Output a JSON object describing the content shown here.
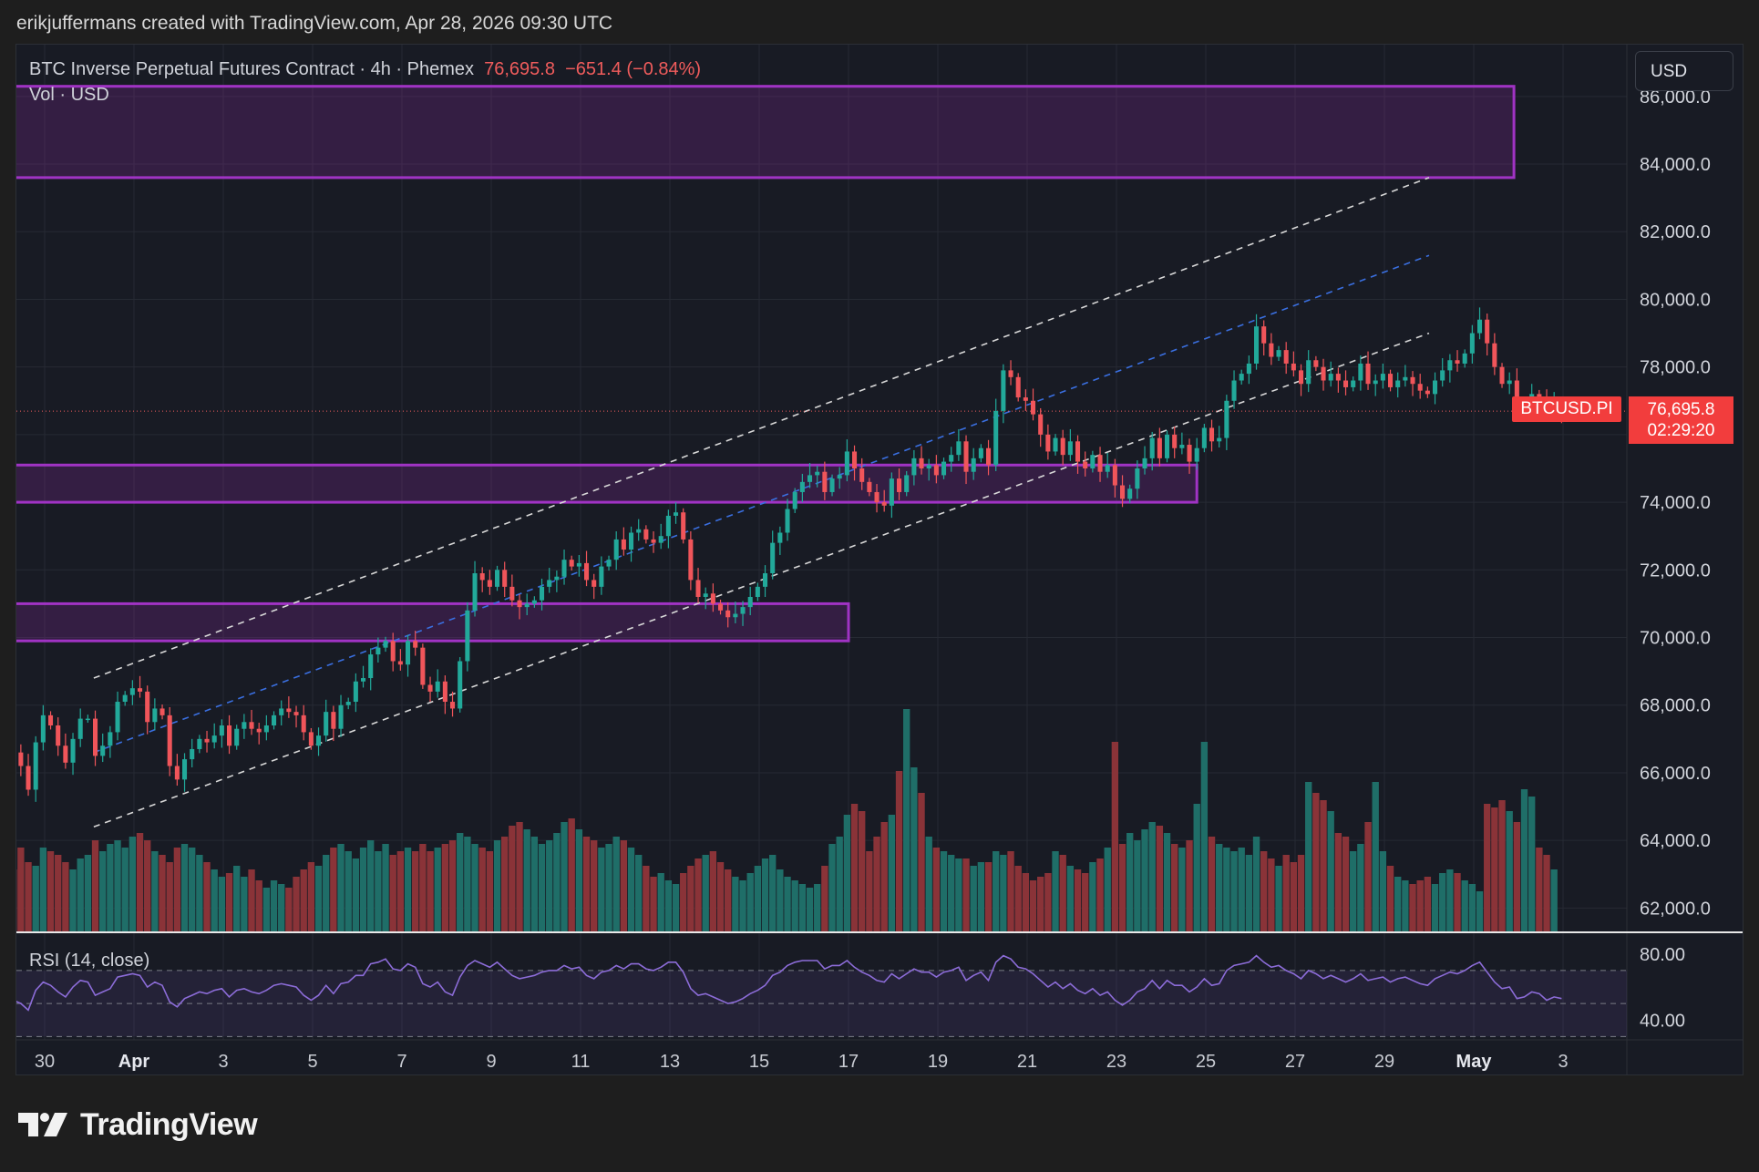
{
  "attribution": "erikjuffermans created with TradingView.com, Apr 28, 2026 09:30 UTC",
  "legend": {
    "symbol_desc": "BTC Inverse Perpetual Futures Contract · 4h · Phemex",
    "last": "76,695.8",
    "change": "−651.4 (−0.84%)"
  },
  "volume_legend": "Vol · USD",
  "rsi_legend": "RSI (14, close)",
  "currency_button": "USD",
  "price_badge": {
    "symbol": "BTCUSD.PI",
    "price": "76,695.8",
    "countdown": "02:29:20"
  },
  "brand": "TradingView",
  "colors": {
    "up": "#22a99a",
    "down": "#f0555a",
    "zone": "#9c27b0",
    "channel_mid": "#3a6fe0",
    "rsi_line": "#8c6cd8",
    "background": "#181b24"
  },
  "chart_data": {
    "type": "candlestick",
    "timeframe": "4h",
    "y_ticks": [
      "86,000.0",
      "84,000.0",
      "82,000.0",
      "80,000.0",
      "78,000.0",
      "76,000.0",
      "74,000.0",
      "72,000.0",
      "70,000.0",
      "68,000.0",
      "66,000.0",
      "64,000.0",
      "62,000.0"
    ],
    "ylim": [
      60900,
      87200
    ],
    "x_ticks": [
      {
        "label": "30",
        "day": -1,
        "bold": false
      },
      {
        "label": "Apr",
        "day": 1,
        "bold": true
      },
      {
        "label": "3",
        "day": 3,
        "bold": false
      },
      {
        "label": "5",
        "day": 5,
        "bold": false
      },
      {
        "label": "7",
        "day": 7,
        "bold": false
      },
      {
        "label": "9",
        "day": 9,
        "bold": false
      },
      {
        "label": "11",
        "day": 11,
        "bold": false
      },
      {
        "label": "13",
        "day": 13,
        "bold": false
      },
      {
        "label": "15",
        "day": 15,
        "bold": false
      },
      {
        "label": "17",
        "day": 17,
        "bold": false
      },
      {
        "label": "19",
        "day": 19,
        "bold": false
      },
      {
        "label": "21",
        "day": 21,
        "bold": false
      },
      {
        "label": "23",
        "day": 23,
        "bold": false
      },
      {
        "label": "25",
        "day": 25,
        "bold": false
      },
      {
        "label": "27",
        "day": 27,
        "bold": false
      },
      {
        "label": "29",
        "day": 29,
        "bold": false
      },
      {
        "label": "May",
        "day": 31,
        "bold": true
      },
      {
        "label": "3",
        "day": 33,
        "bold": false
      }
    ],
    "candles_start_day": -1.7,
    "candles_per_day": 6,
    "closes": [
      66600,
      66200,
      65500,
      66900,
      67700,
      67400,
      66800,
      66300,
      67000,
      67600,
      67600,
      66500,
      66800,
      67200,
      68100,
      68300,
      68500,
      68400,
      67500,
      67900,
      67700,
      66200,
      65800,
      66400,
      66700,
      67000,
      66900,
      67100,
      67400,
      66800,
      67300,
      67500,
      67300,
      67200,
      67400,
      67700,
      67900,
      67800,
      67700,
      67200,
      66800,
      67100,
      67800,
      67300,
      68000,
      68100,
      68700,
      68800,
      69500,
      69700,
      69900,
      69300,
      69200,
      69900,
      69700,
      68600,
      68400,
      68700,
      68100,
      67900,
      69300,
      70800,
      71900,
      71700,
      71500,
      72000,
      71500,
      71100,
      70900,
      71000,
      71100,
      71500,
      71700,
      71800,
      72300,
      72100,
      72200,
      71700,
      71500,
      72100,
      72300,
      72900,
      72600,
      73100,
      73200,
      72900,
      72800,
      73000,
      73600,
      73700,
      72900,
      71700,
      71200,
      71300,
      71000,
      70800,
      70600,
      70700,
      70900,
      71200,
      71500,
      71900,
      72800,
      73100,
      73800,
      74300,
      74600,
      74800,
      74900,
      74300,
      74700,
      74800,
      75500,
      75000,
      74600,
      74300,
      74000,
      73900,
      74700,
      74300,
      74800,
      75300,
      75000,
      75100,
      74800,
      75200,
      75400,
      75800,
      74900,
      75300,
      75600,
      75100,
      76700,
      77900,
      77700,
      77100,
      77000,
      76600,
      76000,
      75500,
      75900,
      75400,
      75800,
      75200,
      75000,
      75400,
      74900,
      75100,
      74500,
      74100,
      74400,
      75000,
      75300,
      75900,
      75300,
      76000,
      75600,
      75700,
      75200,
      75600,
      76200,
      75800,
      75900,
      77000,
      77600,
      77800,
      78100,
      79200,
      78700,
      78300,
      78500,
      78100,
      77900,
      77500,
      78200,
      78000,
      77600,
      77800,
      77600,
      77400,
      77600,
      78100,
      77500,
      77600,
      77800,
      77400,
      77600,
      77700,
      77500,
      77300,
      77200,
      77600,
      77900,
      78200,
      78100,
      78400,
      79000,
      79400,
      78700,
      78000,
      77500,
      77600,
      76800,
      76900,
      77200,
      77100,
      76700,
      76900,
      76700
    ],
    "volume": {
      "ylim": [
        0,
        6500
      ],
      "values": [
        1700,
        2300,
        1900,
        1800,
        2300,
        2200,
        2100,
        1900,
        1700,
        2000,
        2100,
        2500,
        2200,
        2400,
        2500,
        2300,
        2600,
        2700,
        2500,
        2200,
        2100,
        1900,
        2300,
        2400,
        2300,
        2100,
        1900,
        1700,
        1500,
        1600,
        1800,
        1500,
        1700,
        1400,
        1200,
        1400,
        1300,
        1200,
        1500,
        1700,
        1900,
        1800,
        2100,
        2300,
        2400,
        2200,
        2000,
        2300,
        2500,
        2200,
        2400,
        2100,
        2200,
        2300,
        2200,
        2400,
        2200,
        2300,
        2400,
        2500,
        2700,
        2600,
        2400,
        2300,
        2200,
        2500,
        2600,
        2900,
        3000,
        2800,
        2600,
        2400,
        2500,
        2700,
        3000,
        3100,
        2800,
        2600,
        2500,
        2300,
        2400,
        2600,
        2500,
        2300,
        2100,
        1800,
        1500,
        1600,
        1400,
        1300,
        1600,
        1800,
        2000,
        2100,
        2200,
        1900,
        1700,
        1500,
        1400,
        1600,
        1800,
        2000,
        2100,
        1700,
        1500,
        1400,
        1300,
        1200,
        1300,
        1800,
        2400,
        2600,
        3200,
        3500,
        3300,
        2200,
        2600,
        3000,
        3200,
        4400,
        6100,
        4500,
        3800,
        2600,
        2300,
        2200,
        2100,
        2000,
        2000,
        1800,
        1900,
        1900,
        2200,
        2100,
        2200,
        1800,
        1600,
        1400,
        1500,
        1600,
        2200,
        2100,
        1800,
        1700,
        1600,
        1900,
        2000,
        2300,
        5200,
        2400,
        2700,
        2500,
        2800,
        3000,
        2900,
        2700,
        2400,
        2300,
        2500,
        3500,
        5200,
        2600,
        2400,
        2300,
        2200,
        2300,
        2100,
        2600,
        2200,
        2000,
        1800,
        2100,
        1900,
        2100,
        4100,
        3800,
        3600,
        3300,
        2700,
        2600,
        2200,
        2400,
        3000,
        4100,
        2200,
        1800,
        1500,
        1400,
        1300,
        1400,
        1500,
        1300,
        1600,
        1700,
        1600,
        1400,
        1300,
        1100,
        3500,
        3400,
        3600,
        3300,
        3000,
        3900,
        3700,
        2300,
        2100,
        1700
      ],
      "stroke_colors": "per candle direction"
    },
    "rsi": {
      "ylim": [
        28,
        92
      ],
      "ticks": [
        "80.00",
        "40.00"
      ],
      "bands": [
        70,
        50,
        30
      ],
      "values": [
        52,
        50,
        46,
        58,
        63,
        61,
        57,
        54,
        60,
        64,
        63,
        55,
        57,
        59,
        66,
        67,
        68,
        67,
        60,
        63,
        61,
        51,
        48,
        53,
        55,
        57,
        56,
        58,
        59,
        54,
        58,
        59,
        57,
        56,
        58,
        61,
        62,
        61,
        60,
        55,
        52,
        55,
        61,
        56,
        62,
        63,
        67,
        67,
        74,
        75,
        77,
        71,
        70,
        74,
        72,
        62,
        60,
        63,
        57,
        55,
        66,
        73,
        76,
        74,
        72,
        75,
        71,
        67,
        65,
        66,
        67,
        69,
        70,
        70,
        73,
        71,
        72,
        67,
        65,
        69,
        70,
        73,
        71,
        74,
        74,
        71,
        70,
        72,
        75,
        75,
        69,
        59,
        55,
        56,
        54,
        52,
        50,
        51,
        53,
        56,
        58,
        61,
        67,
        69,
        73,
        75,
        76,
        76,
        76,
        71,
        73,
        73,
        76,
        72,
        69,
        67,
        64,
        63,
        68,
        65,
        68,
        71,
        69,
        69,
        66,
        69,
        70,
        72,
        64,
        67,
        69,
        64,
        75,
        79,
        77,
        72,
        71,
        68,
        64,
        60,
        63,
        59,
        62,
        58,
        56,
        59,
        55,
        57,
        52,
        49,
        52,
        57,
        59,
        64,
        59,
        64,
        61,
        61,
        57,
        60,
        65,
        61,
        62,
        70,
        73,
        74,
        75,
        79,
        75,
        72,
        73,
        70,
        68,
        65,
        70,
        68,
        65,
        67,
        65,
        63,
        65,
        68,
        64,
        65,
        66,
        63,
        65,
        66,
        64,
        62,
        61,
        65,
        67,
        69,
        68,
        70,
        73,
        75,
        69,
        63,
        59,
        60,
        53,
        54,
        57,
        56,
        52,
        54,
        53
      ]
    },
    "zones": [
      {
        "top": 86300,
        "bottom": 83600,
        "day_start": -1.7,
        "day_end": 31.9
      },
      {
        "top": 75100,
        "bottom": 74000,
        "day_start": -1.7,
        "day_end": 24.8
      },
      {
        "top": 71000,
        "bottom": 69900,
        "day_start": -1.7,
        "day_end": 17.0
      }
    ],
    "channel": {
      "upper": [
        [
          0.1,
          68800
        ],
        [
          30.0,
          83600
        ]
      ],
      "middle": [
        [
          0.1,
          66600
        ],
        [
          30.0,
          81300
        ]
      ],
      "lower": [
        [
          0.1,
          64400
        ],
        [
          30.0,
          79000
        ]
      ]
    },
    "last_price_line": 76695.8
  }
}
